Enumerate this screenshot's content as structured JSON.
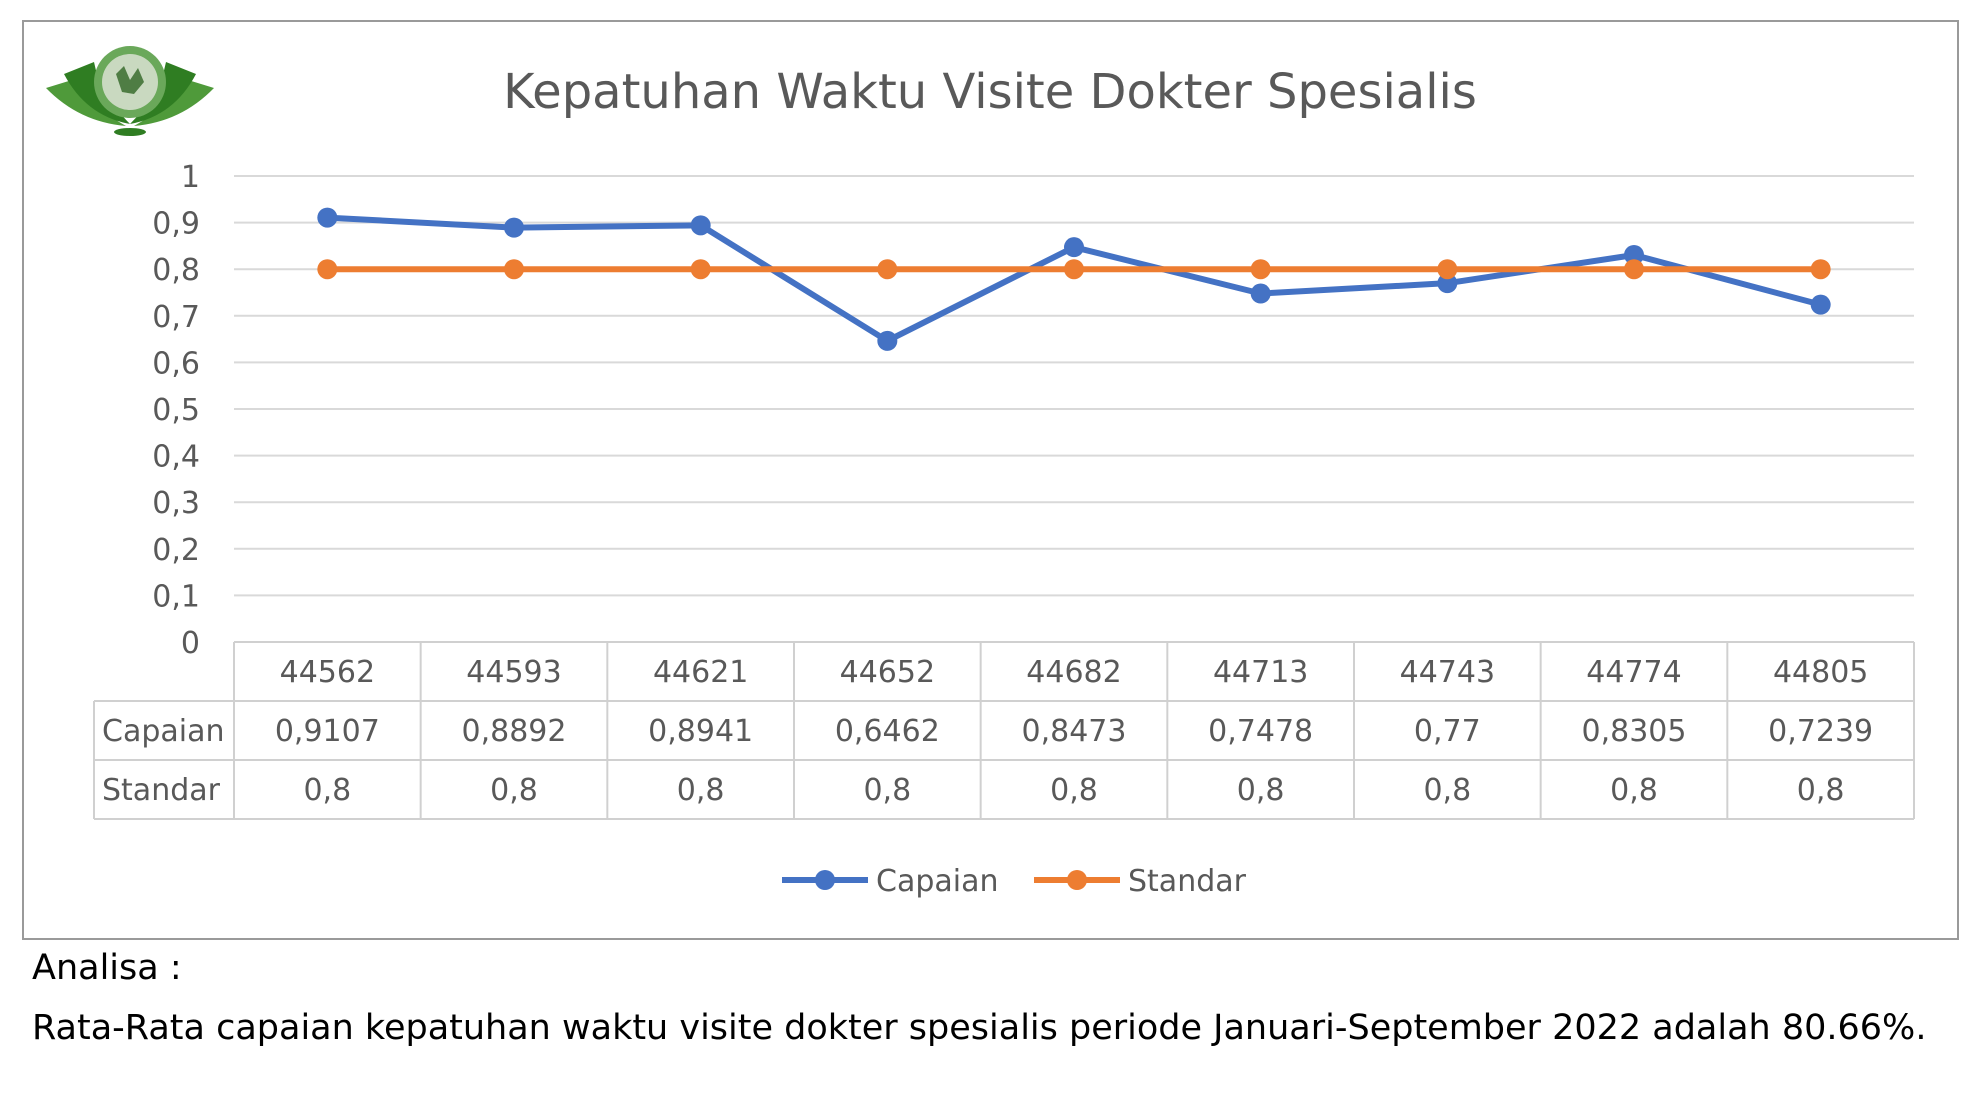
{
  "chart_data": {
    "type": "line",
    "title": "Kepatuhan Waktu Visite Dokter Spesialis",
    "categories": [
      "44562",
      "44593",
      "44621",
      "44652",
      "44682",
      "44713",
      "44743",
      "44774",
      "44805"
    ],
    "series": [
      {
        "name": "Capaian",
        "color": "#4472c4",
        "values": [
          0.9107,
          0.8892,
          0.8941,
          0.6462,
          0.8473,
          0.7478,
          0.77,
          0.8305,
          0.7239
        ],
        "labels": [
          "0,9107",
          "0,8892",
          "0,8941",
          "0,6462",
          "0,8473",
          "0,7478",
          "0,77",
          "0,8305",
          "0,7239"
        ]
      },
      {
        "name": "Standar",
        "color": "#ed7d31",
        "values": [
          0.8,
          0.8,
          0.8,
          0.8,
          0.8,
          0.8,
          0.8,
          0.8,
          0.8
        ],
        "labels": [
          "0,8",
          "0,8",
          "0,8",
          "0,8",
          "0,8",
          "0,8",
          "0,8",
          "0,8",
          "0,8"
        ]
      }
    ],
    "ylim": [
      0,
      1
    ],
    "yticks": [
      0,
      0.1,
      0.2,
      0.3,
      0.4,
      0.5,
      0.6,
      0.7,
      0.8,
      0.9,
      1
    ],
    "ytick_labels": [
      "0",
      "0,1",
      "0,2",
      "0,3",
      "0,4",
      "0,5",
      "0,6",
      "0,7",
      "0,8",
      "0,9",
      "1"
    ],
    "grid": true,
    "legend": "bottom",
    "data_table": true
  },
  "logo": {
    "icon": "lotus-logo-icon",
    "color": "#3a8a2a"
  },
  "analysis": {
    "heading": "Analisa :",
    "text": "Rata-Rata capaian kepatuhan waktu visite dokter spesialis  periode Januari-September 2022 adalah 80.66%."
  }
}
